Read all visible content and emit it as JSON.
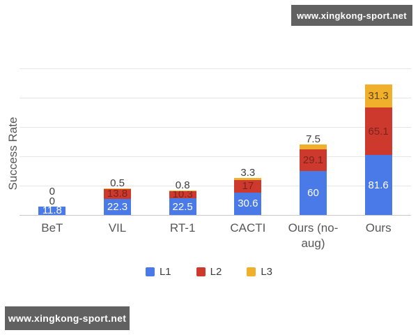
{
  "watermarks": {
    "top_right": "www.xingkong-sport.net",
    "bottom_left": "www.xingkong-sport.net"
  },
  "chart_data": {
    "type": "bar",
    "stacked": true,
    "title": "",
    "xlabel": "",
    "ylabel": "Success Rate",
    "categories": [
      "BeT",
      "VIL",
      "RT-1",
      "CACTI",
      "Ours (no-aug)",
      "Ours"
    ],
    "series": [
      {
        "name": "L1",
        "color": "#4A7AE8",
        "label_color": "#FFFFFF",
        "values": [
          11.8,
          22.3,
          22.5,
          30.6,
          60,
          81.6
        ]
      },
      {
        "name": "L2",
        "color": "#CE392E",
        "label_color": "#7A241D",
        "values": [
          0,
          13.8,
          10.3,
          17,
          29.1,
          65.1
        ]
      },
      {
        "name": "L3",
        "color": "#F1B02C",
        "label_color": "#5E4708",
        "values": [
          0,
          0.5,
          0.8,
          3.3,
          7.5,
          31.3
        ]
      }
    ],
    "ylim": [
      0,
      200
    ],
    "grid_step": 40,
    "grid": true,
    "y_tick_labels_shown": false,
    "data_labels": true,
    "legend_position": "bottom",
    "outside_label_color": "#3D3D3D"
  },
  "colors": {
    "background": "#FFFFFF",
    "gridline": "#E6E6E6",
    "axis_line": "#C9C9C9",
    "axis_text": "#575757",
    "watermark_bg": "#616161",
    "watermark_text": "#FFFFFF",
    "legend_text": "#3C3C3C"
  }
}
